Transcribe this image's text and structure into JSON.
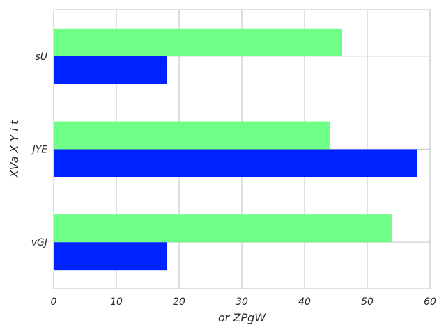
{
  "chart_data": {
    "type": "bar",
    "orientation": "horizontal",
    "categories": [
      "vGJ",
      "JYE",
      "sU"
    ],
    "series": [
      {
        "color": "#0022ff",
        "values": [
          18,
          58,
          18
        ]
      },
      {
        "color": "#70ff86",
        "values": [
          54,
          44,
          46
        ]
      }
    ],
    "xlabel": "or ZPgW",
    "ylabel": "XVa X Y i t",
    "xlim": [
      0,
      60
    ],
    "xticks": [
      0,
      10,
      20,
      30,
      40,
      50,
      60
    ],
    "grid": true,
    "legend": "none"
  }
}
